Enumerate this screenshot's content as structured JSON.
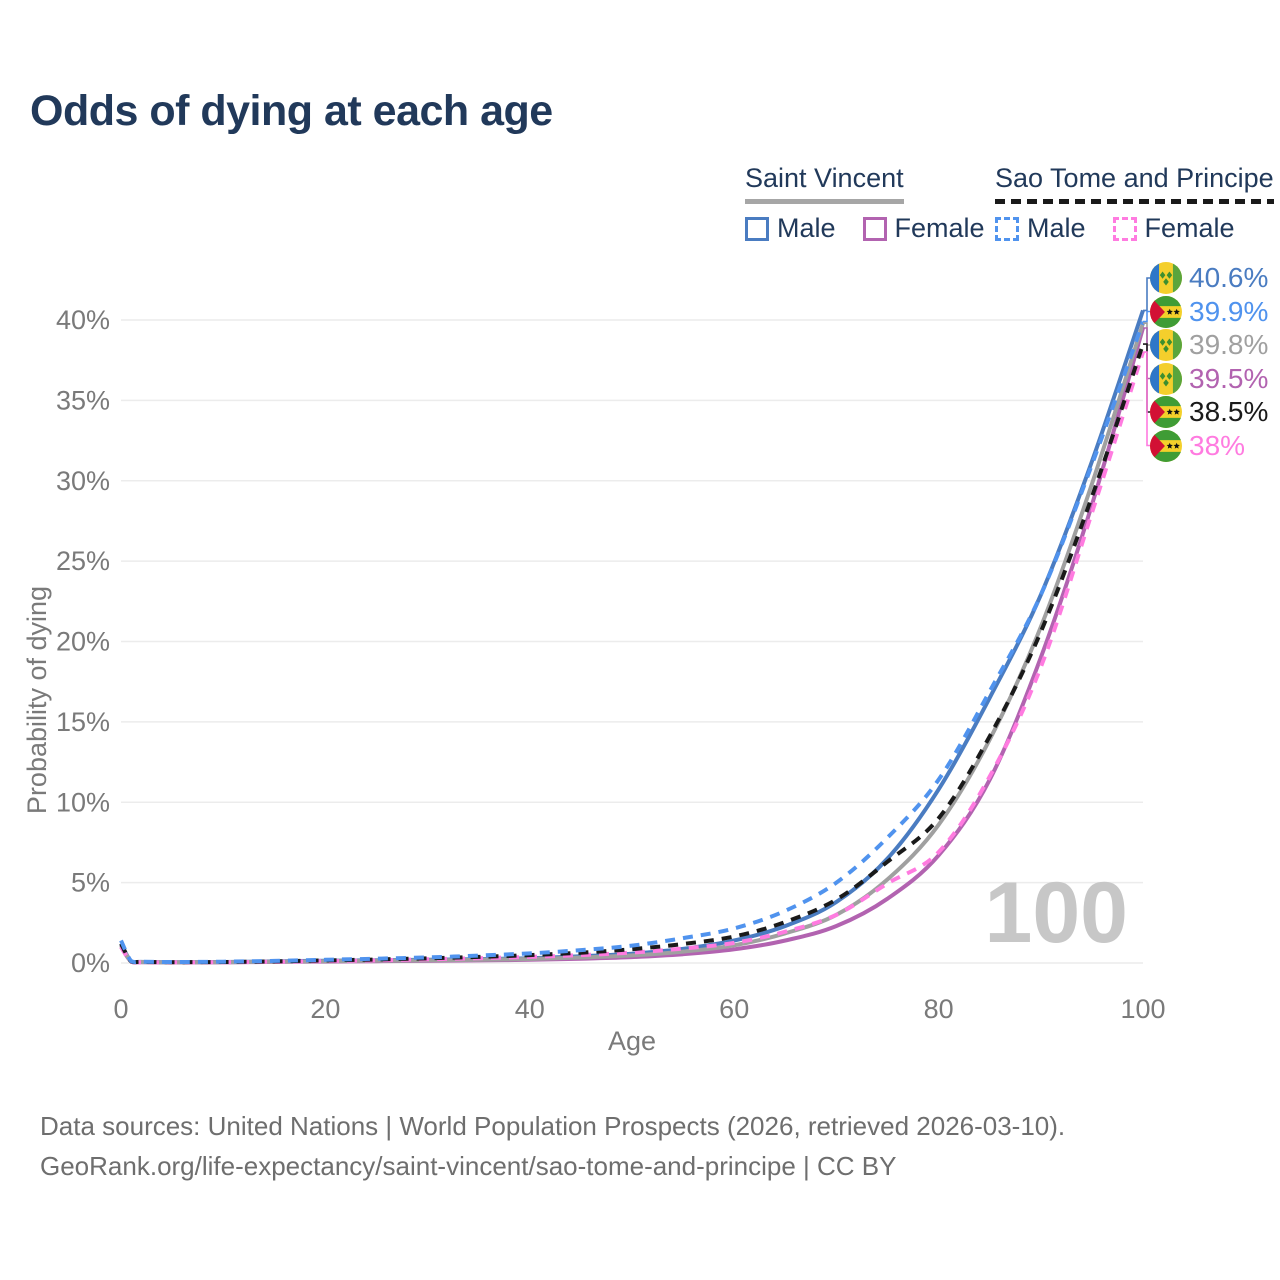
{
  "title": "Odds of dying at each age",
  "legend": {
    "groups": [
      {
        "name": "Saint Vincent",
        "line_style": "solid",
        "underline_color": "#a6a6a6",
        "items": [
          {
            "label": "Male",
            "color": "#4a7cc1"
          },
          {
            "label": "Female",
            "color": "#b263b0"
          }
        ]
      },
      {
        "name": "Sao Tome and Principe",
        "line_style": "dashed",
        "underline_color": "#1a1a1a",
        "items": [
          {
            "label": "Male",
            "color": "#5093ee"
          },
          {
            "label": "Female",
            "color": "#ff7be0"
          }
        ]
      }
    ]
  },
  "watermark": "100",
  "footer": {
    "line1": "Data sources: United Nations | World Population Prospects (2026, retrieved 2026-03-10).",
    "line2": "GeoRank.org/life-expectancy/saint-vincent/sao-tome-and-principe | CC BY"
  },
  "chart_data": {
    "type": "line",
    "title": "Odds of dying at each age",
    "xlabel": "Age",
    "ylabel": "Probability of dying",
    "xlim": [
      0,
      100
    ],
    "ylim": [
      0,
      42
    ],
    "x_ticks": [
      0,
      20,
      40,
      60,
      80,
      100
    ],
    "y_ticks": [
      0,
      5,
      10,
      15,
      20,
      25,
      30,
      35,
      40
    ],
    "y_tick_suffix": "%",
    "grid": "horizontal",
    "legend_position": "top-right",
    "x": [
      0,
      1,
      2,
      5,
      10,
      15,
      20,
      25,
      30,
      35,
      40,
      45,
      50,
      55,
      60,
      65,
      70,
      75,
      80,
      85,
      90,
      95,
      100
    ],
    "series": [
      {
        "name": "Saint Vincent",
        "sex": "male",
        "flag": "saint-vincent",
        "color": "#4a7cc1",
        "dash": false,
        "end_label": "40.6%",
        "values": [
          1.2,
          0.1,
          0.07,
          0.05,
          0.06,
          0.1,
          0.14,
          0.17,
          0.2,
          0.24,
          0.3,
          0.42,
          0.58,
          0.88,
          1.4,
          2.3,
          3.8,
          6.5,
          10.8,
          16.5,
          22.9,
          31.2,
          40.6
        ]
      },
      {
        "name": "Saint Vincent",
        "sex": "female",
        "flag": "saint-vincent",
        "color": "#b263b0",
        "dash": false,
        "end_label": "39.5%",
        "values": [
          1.0,
          0.08,
          0.05,
          0.04,
          0.04,
          0.07,
          0.09,
          0.11,
          0.13,
          0.16,
          0.2,
          0.27,
          0.37,
          0.55,
          0.85,
          1.4,
          2.3,
          4.0,
          6.7,
          11.4,
          19.0,
          28.5,
          39.5
        ]
      },
      {
        "name": "Saint Vincent",
        "sex": "all",
        "flag": "saint-vincent",
        "color": "#a0a0a0",
        "dash": false,
        "end_label": "39.8%",
        "values": [
          1.1,
          0.09,
          0.06,
          0.04,
          0.05,
          0.08,
          0.11,
          0.14,
          0.16,
          0.2,
          0.25,
          0.34,
          0.47,
          0.71,
          1.1,
          1.85,
          3.0,
          5.2,
          8.6,
          13.9,
          20.9,
          29.8,
          39.8
        ]
      },
      {
        "name": "Sao Tome and Principe",
        "sex": "female",
        "flag": "sao-tome",
        "color": "#ff7be0",
        "dash": true,
        "end_label": "38%",
        "values": [
          1.0,
          0.08,
          0.05,
          0.04,
          0.05,
          0.08,
          0.12,
          0.17,
          0.23,
          0.3,
          0.38,
          0.49,
          0.65,
          0.9,
          1.25,
          1.95,
          3.0,
          4.95,
          6.9,
          11.6,
          18.4,
          28.0,
          38.0
        ]
      },
      {
        "name": "Sao Tome and Principe",
        "sex": "all",
        "flag": "sao-tome",
        "color": "#1a1a1a",
        "dash": true,
        "end_label": "38.5%",
        "values": [
          1.2,
          0.1,
          0.07,
          0.05,
          0.06,
          0.1,
          0.16,
          0.22,
          0.29,
          0.38,
          0.49,
          0.64,
          0.86,
          1.18,
          1.65,
          2.55,
          3.95,
          6.3,
          9.0,
          14.1,
          20.6,
          29.0,
          38.5
        ]
      },
      {
        "name": "Sao Tome and Principe",
        "sex": "male",
        "flag": "sao-tome",
        "color": "#5093ee",
        "dash": true,
        "end_label": "39.9%",
        "values": [
          1.4,
          0.12,
          0.08,
          0.06,
          0.08,
          0.13,
          0.2,
          0.27,
          0.35,
          0.46,
          0.6,
          0.8,
          1.08,
          1.55,
          2.15,
          3.25,
          5.0,
          7.8,
          11.4,
          16.9,
          22.9,
          31.0,
          39.9
        ]
      }
    ]
  }
}
